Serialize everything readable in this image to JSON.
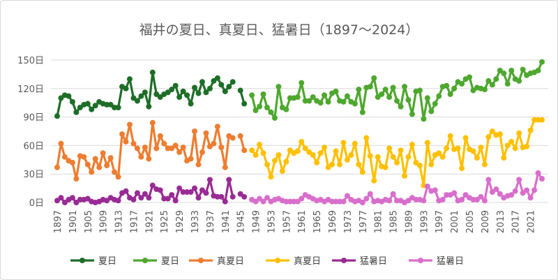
{
  "chart_data": {
    "type": "line",
    "title": "福井の夏日、真夏日、猛暑日（1897～2024）",
    "ylim": [
      0,
      150
    ],
    "yticks": [
      "0日",
      "30日",
      "60日",
      "90日",
      "120日",
      "150日"
    ],
    "ytick_values": [
      0,
      30,
      60,
      90,
      120,
      150
    ],
    "xticks": [
      "1897",
      "1901",
      "1905",
      "1909",
      "1913",
      "1917",
      "1921",
      "1925",
      "1929",
      "1933",
      "1937",
      "1941",
      "1945",
      "1949",
      "1953",
      "1957",
      "1961",
      "1965",
      "1969",
      "1973",
      "1977",
      "1981",
      "1985",
      "1989",
      "1993",
      "1997",
      "2001",
      "2005",
      "2009",
      "2013",
      "2017",
      "2021"
    ],
    "grid": true,
    "legend": "bottom",
    "series": [
      {
        "name": "夏日",
        "color": "#1e6e28",
        "start": 1897,
        "values": [
          91,
          110,
          113,
          112,
          106,
          95,
          100,
          103,
          104,
          98,
          102,
          106,
          104,
          103,
          103,
          100,
          100,
          122,
          120,
          130,
          110,
          107,
          112,
          116,
          101,
          137,
          114,
          111,
          114,
          116,
          119,
          123,
          111,
          117,
          113,
          104,
          121,
          115,
          127,
          116,
          120,
          128,
          131,
          124,
          117,
          122,
          127,
          null,
          118,
          104
        ]
      },
      {
        "name": "夏日",
        "color": "#4ea72e",
        "start": 1948,
        "values": [
          113,
          97,
          101,
          114,
          100,
          95,
          89,
          122,
          100,
          98,
          110,
          110,
          111,
          126,
          107,
          107,
          111,
          107,
          105,
          113,
          106,
          115,
          117,
          107,
          106,
          112,
          106,
          104,
          119,
          95,
          121,
          122,
          131,
          111,
          114,
          119,
          111,
          121,
          107,
          101,
          122,
          108,
          93,
          117,
          118,
          88,
          110,
          96,
          104,
          112,
          122,
          123,
          114,
          120,
          127,
          125,
          130,
          132,
          118,
          121,
          120,
          119,
          128,
          124,
          130,
          139,
          136,
          125,
          139,
          130,
          128,
          140,
          134,
          136,
          137,
          139,
          148
        ]
      },
      {
        "name": "真夏日",
        "color": "#ed7d31",
        "start": 1897,
        "values": [
          37,
          62,
          48,
          44,
          42,
          25,
          49,
          48,
          40,
          32,
          46,
          37,
          52,
          39,
          47,
          32,
          27,
          72,
          64,
          82,
          62,
          57,
          48,
          58,
          46,
          84,
          57,
          70,
          62,
          57,
          57,
          60,
          53,
          58,
          44,
          46,
          75,
          40,
          53,
          73,
          59,
          62,
          80,
          58,
          37,
          70,
          68,
          null,
          70,
          55
        ]
      },
      {
        "name": "真夏日",
        "color": "#ffc000",
        "start": 1948,
        "values": [
          55,
          50,
          61,
          52,
          40,
          27,
          44,
          50,
          33,
          43,
          55,
          52,
          54,
          64,
          57,
          53,
          50,
          42,
          52,
          58,
          37,
          40,
          54,
          40,
          63,
          45,
          50,
          62,
          40,
          32,
          68,
          49,
          23,
          48,
          38,
          37,
          57,
          48,
          42,
          55,
          28,
          48,
          61,
          42,
          39,
          18,
          63,
          40,
          50,
          52,
          48,
          57,
          70,
          56,
          57,
          36,
          68,
          56,
          54,
          47,
          58,
          40,
          69,
          75,
          71,
          72,
          47,
          60,
          64,
          57,
          73,
          58,
          59,
          76,
          87,
          87,
          87
        ]
      },
      {
        "name": "猛暑日",
        "color": "#992b94",
        "start": 1897,
        "values": [
          2,
          5,
          0,
          3,
          5,
          0,
          3,
          3,
          4,
          1,
          0,
          1,
          3,
          2,
          5,
          3,
          2,
          10,
          12,
          5,
          3,
          10,
          5,
          9,
          5,
          18,
          14,
          13,
          4,
          4,
          8,
          2,
          15,
          11,
          11,
          11,
          15,
          5,
          13,
          10,
          24,
          7,
          6,
          6,
          1,
          24,
          6,
          null,
          9,
          6
        ]
      },
      {
        "name": "猛暑日",
        "color": "#d86ecc",
        "start": 1948,
        "values": [
          3,
          1,
          4,
          1,
          5,
          1,
          3,
          4,
          2,
          1,
          1,
          1,
          1,
          4,
          8,
          6,
          4,
          2,
          3,
          1,
          3,
          1,
          1,
          1,
          1,
          7,
          3,
          1,
          2,
          0,
          4,
          9,
          1,
          2,
          1,
          3,
          2,
          9,
          2,
          2,
          0,
          2,
          5,
          3,
          3,
          2,
          17,
          12,
          13,
          2,
          3,
          8,
          8,
          10,
          2,
          3,
          8,
          5,
          3,
          3,
          6,
          2,
          24,
          11,
          14,
          9,
          5,
          7,
          8,
          12,
          24,
          10,
          13,
          5,
          13,
          31,
          25
        ]
      }
    ]
  }
}
